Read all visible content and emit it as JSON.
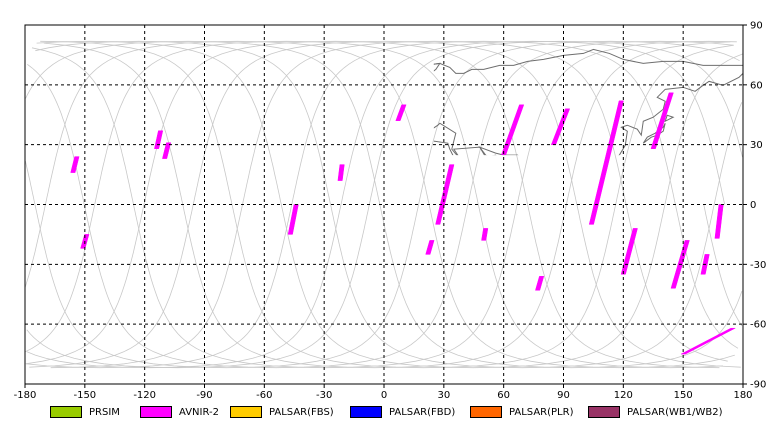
{
  "axes": {
    "x_ticks": [
      "-180",
      "-150",
      "-120",
      "-90",
      "-60",
      "-30",
      "0",
      "30",
      "60",
      "90",
      "120",
      "150",
      "180"
    ],
    "y_ticks": [
      "90",
      "60",
      "30",
      "0",
      "-30",
      "-60",
      "-90"
    ]
  },
  "map": {
    "lon_range": [
      -180,
      180
    ],
    "lat_range": [
      -90,
      90
    ],
    "grid_step_deg": 30,
    "grid_style": "dashed",
    "orbit_color": "#c8c8c8",
    "land_outline_color": "#6e6e6e",
    "swath_color": "#ff00ff",
    "acquisitions": [
      {
        "sensor": "AVNIR-2",
        "lat": [
          16,
          24
        ],
        "lon": [
          -156,
          -154
        ]
      },
      {
        "sensor": "AVNIR-2",
        "lat": [
          -22,
          -15
        ],
        "lon": [
          -151,
          -149
        ]
      },
      {
        "sensor": "AVNIR-2",
        "lat": [
          28,
          37
        ],
        "lon": [
          -114,
          -112
        ]
      },
      {
        "sensor": "AVNIR-2",
        "lat": [
          23,
          31
        ],
        "lon": [
          -110,
          -108
        ]
      },
      {
        "sensor": "AVNIR-2",
        "lat": [
          12,
          20
        ],
        "lon": [
          -22,
          -21
        ]
      },
      {
        "sensor": "AVNIR-2",
        "lat": [
          -15,
          0
        ],
        "lon": [
          -47,
          -44
        ]
      },
      {
        "sensor": "AVNIR-2",
        "lat": [
          42,
          50
        ],
        "lon": [
          7,
          10
        ]
      },
      {
        "sensor": "AVNIR-2",
        "lat": [
          -10,
          20
        ],
        "lon": [
          27,
          34
        ]
      },
      {
        "sensor": "AVNIR-2",
        "lat": [
          -25,
          -18
        ],
        "lon": [
          22,
          24
        ]
      },
      {
        "sensor": "AVNIR-2",
        "lat": [
          -18,
          -12
        ],
        "lon": [
          50,
          51
        ]
      },
      {
        "sensor": "AVNIR-2",
        "lat": [
          25,
          50
        ],
        "lon": [
          60,
          69
        ]
      },
      {
        "sensor": "AVNIR-2",
        "lat": [
          -43,
          -36
        ],
        "lon": [
          77,
          79
        ]
      },
      {
        "sensor": "AVNIR-2",
        "lat": [
          30,
          48
        ],
        "lon": [
          85,
          92
        ]
      },
      {
        "sensor": "AVNIR-2",
        "lat": [
          -10,
          52
        ],
        "lon": [
          104,
          119
        ]
      },
      {
        "sensor": "AVNIR-2",
        "lat": [
          -35,
          -12
        ],
        "lon": [
          120,
          126
        ]
      },
      {
        "sensor": "AVNIR-2",
        "lat": [
          28,
          56
        ],
        "lon": [
          135,
          144
        ]
      },
      {
        "sensor": "AVNIR-2",
        "lat": [
          -42,
          -18
        ],
        "lon": [
          145,
          152
        ]
      },
      {
        "sensor": "AVNIR-2",
        "lat": [
          -35,
          -25
        ],
        "lon": [
          160,
          162
        ]
      },
      {
        "sensor": "AVNIR-2",
        "lat": [
          -17,
          0
        ],
        "lon": [
          167,
          169
        ]
      },
      {
        "sensor": "AVNIR-2",
        "lat": [
          -75,
          -62
        ],
        "lon": [
          150,
          175
        ]
      }
    ]
  },
  "legend": [
    {
      "label": "PRSIM",
      "color": "#99cc00"
    },
    {
      "label": "AVNIR-2",
      "color": "#ff00ff"
    },
    {
      "label": "PALSAR(FBS)",
      "color": "#ffcc00"
    },
    {
      "label": "PALSAR(FBD)",
      "color": "#0000ff"
    },
    {
      "label": "PALSAR(PLR)",
      "color": "#ff6600"
    },
    {
      "label": "PALSAR(WB1/WB2)",
      "color": "#993366"
    }
  ]
}
